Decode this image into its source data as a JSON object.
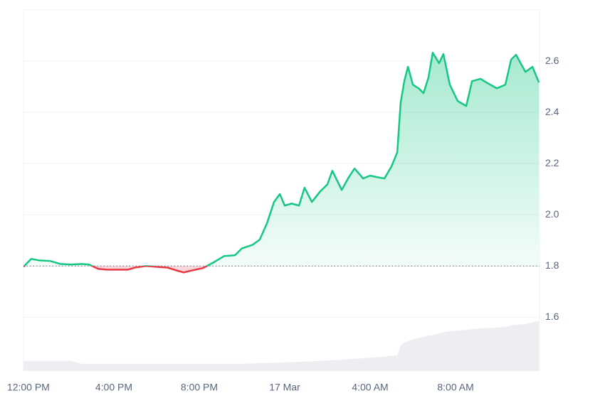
{
  "chart_data": {
    "type": "line",
    "x": [
      -0.23,
      -0.1,
      0.13,
      0.5,
      1,
      1.5,
      2,
      2.5,
      2.83,
      3.27,
      3.67,
      4.17,
      4.67,
      5,
      5.5,
      6,
      6.5,
      7,
      7.27,
      7.67,
      8.17,
      8.67,
      9.17,
      9.67,
      10,
      10.5,
      10.83,
      11.17,
      11.5,
      11.77,
      12,
      12.33,
      12.67,
      12.93,
      13.27,
      13.67,
      14,
      14.23,
      14.67,
      15,
      15.27,
      15.67,
      16,
      16.33,
      16.67,
      17,
      17.27,
      17.43,
      17.6,
      17.77,
      18,
      18.27,
      18.5,
      18.73,
      18.93,
      19.23,
      19.43,
      19.73,
      20.1,
      20.5,
      20.77,
      21.17,
      21.5,
      21.93,
      22.33,
      22.6,
      22.83,
      23.27,
      23.6,
      23.9
    ],
    "series": [
      {
        "color": "#16c784",
        "down_color": "#ea3943",
        "values": [
          1.797,
          1.808,
          1.828,
          1.822,
          1.82,
          1.808,
          1.806,
          1.808,
          1.806,
          1.789,
          1.786,
          1.786,
          1.786,
          1.794,
          1.8,
          1.797,
          1.794,
          1.781,
          1.775,
          1.783,
          1.792,
          1.814,
          1.839,
          1.842,
          1.869,
          1.883,
          1.903,
          1.967,
          2.05,
          2.081,
          2.036,
          2.044,
          2.036,
          2.106,
          2.05,
          2.092,
          2.119,
          2.172,
          2.097,
          2.147,
          2.181,
          2.142,
          2.153,
          2.147,
          2.142,
          2.189,
          2.244,
          2.439,
          2.522,
          2.578,
          2.508,
          2.494,
          2.475,
          2.536,
          2.633,
          2.592,
          2.628,
          2.508,
          2.444,
          2.425,
          2.522,
          2.531,
          2.514,
          2.494,
          2.508,
          2.606,
          2.625,
          2.558,
          2.578,
          2.517
        ]
      },
      {
        "color": "#eceef2",
        "axis": "y2",
        "values": [
          2.8,
          2.8,
          2.8,
          2.8,
          2.8,
          2.8,
          2.8,
          2.0,
          2.0,
          2.0,
          2.0,
          2.0,
          2.0,
          2.0,
          2.0,
          2.0,
          2.0,
          2.0,
          2.0,
          2.0,
          2.0,
          2.0,
          2.0,
          2.0,
          2.0,
          2.1,
          2.2,
          2.2,
          2.3,
          2.3,
          2.4,
          2.5,
          2.5,
          2.6,
          2.7,
          2.8,
          2.9,
          3.0,
          3.1,
          3.3,
          3.4,
          3.5,
          3.7,
          3.8,
          4.0,
          4.2,
          4.3,
          7.0,
          7.9,
          8.3,
          8.8,
          9.2,
          9.5,
          9.8,
          10.0,
          10.4,
          10.7,
          11.0,
          11.2,
          11.4,
          11.6,
          11.8,
          11.9,
          12.0,
          12.2,
          12.6,
          12.8,
          13.0,
          13.5,
          13.8
        ]
      }
    ],
    "reference_line": 1.8,
    "xlim": [
      -0.23,
      23.93
    ],
    "xticks": [
      {
        "value": 0,
        "label": "12:00 PM"
      },
      {
        "value": 4,
        "label": "4:00 PM"
      },
      {
        "value": 8,
        "label": "8:00 PM"
      },
      {
        "value": 12,
        "label": "17 Mar"
      },
      {
        "value": 16,
        "label": "4:00 AM"
      },
      {
        "value": 20,
        "label": "8:00 AM"
      }
    ],
    "ylim": [
      1.39,
      2.8
    ],
    "yticks": [
      1.6,
      1.8,
      {
        "value": 2,
        "label": "2.0"
      },
      2.2,
      2.4,
      2.6
    ],
    "y2lim": [
      0,
      100
    ],
    "grid": true
  }
}
